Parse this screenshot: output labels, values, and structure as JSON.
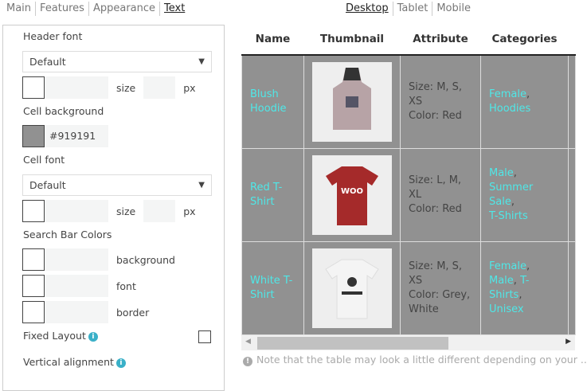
{
  "left_tabs": [
    "Main",
    "Features",
    "Appearance",
    "Text"
  ],
  "left_active": "Text",
  "device_tabs": [
    "Desktop",
    "Tablet",
    "Mobile"
  ],
  "device_active": "Desktop",
  "settings": {
    "header_font_label": "Header font",
    "header_font_value": "Default",
    "size_label": "size",
    "px_label": "px",
    "cell_background_label": "Cell background",
    "cell_background_value": "#919191",
    "cell_font_label": "Cell font",
    "cell_font_value": "Default",
    "search_bar_colors_label": "Search Bar Colors",
    "background_label": "background",
    "font_label": "font",
    "border_label": "border",
    "fixed_layout_label": "Fixed Layout",
    "fixed_layout_checked": false,
    "vertical_alignment_label": "Vertical alignment"
  },
  "colors": {
    "cell_background": "#919191",
    "link": "#4ee8e8"
  },
  "table": {
    "headers": [
      "Name",
      "Thumbnail",
      "Attribute",
      "Categories"
    ],
    "rows": [
      {
        "name": "Blush Hoodie",
        "thumbnail": "hoodie",
        "attribute": [
          "Size: M, S, XS",
          "Color: Red"
        ],
        "categories": [
          "Female",
          "Hoodies"
        ]
      },
      {
        "name": "Red T-Shirt",
        "thumbnail": "red-tshirt",
        "attribute": [
          "Size: L, M, XL",
          "Color: Red"
        ],
        "categories": [
          "Male",
          "Summer Sale",
          "T-Shirts"
        ]
      },
      {
        "name": "White T-Shirt",
        "thumbnail": "white-tshirt",
        "attribute": [
          "Size: M, S, XS",
          "Color: Grey, White"
        ],
        "categories": [
          "Female",
          "Male",
          "T-Shirts",
          "Unisex"
        ]
      }
    ]
  },
  "note": "Note that the table may look a little different depending on your ..."
}
